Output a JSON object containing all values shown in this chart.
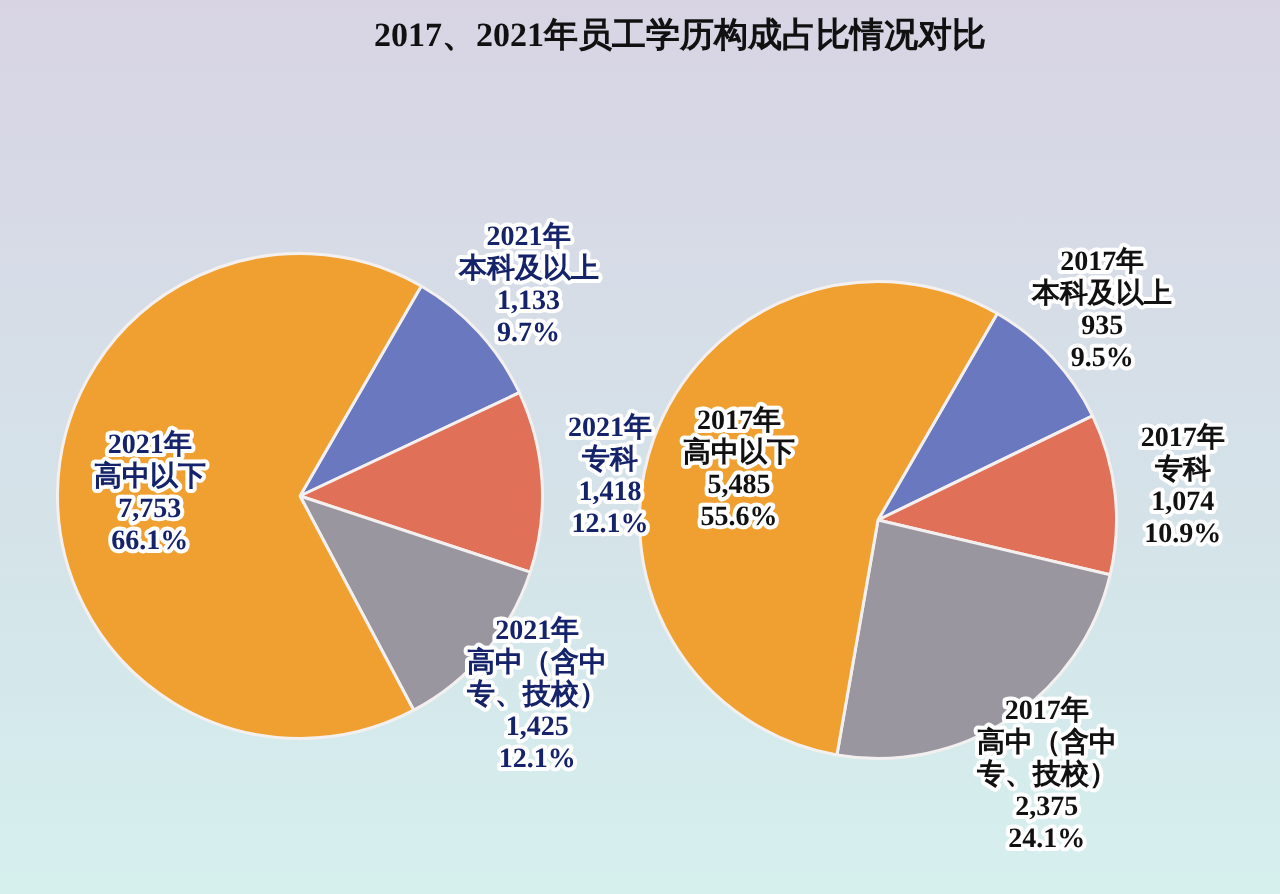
{
  "chart_data": [
    {
      "type": "pie",
      "title": "2017、2021年员工学历构成占比情况对比",
      "categories": [
        "2021年本科及以上",
        "2021年专科",
        "2021年高中（含中专、技校）",
        "2021年高中以下"
      ],
      "values": [
        1133,
        1418,
        1425,
        7753
      ],
      "colors": [
        "#6a78c0",
        "#e07058",
        "#9a96a0",
        "#f0a030"
      ],
      "value_labels": [
        "1,133 9.7%",
        "1,418 12.1%",
        "1,425 12.1%",
        "7,753 66.1%"
      ]
    },
    {
      "type": "pie",
      "categories": [
        "2017年本科及以上",
        "2017年专科",
        "2017年高中（含中专、技校）",
        "2017年高中以下"
      ],
      "values": [
        935,
        1074,
        2375,
        5485
      ],
      "colors": [
        "#6a78c0",
        "#e07058",
        "#9a96a0",
        "#f0a030"
      ],
      "value_labels": [
        "935 9.5%",
        "1,074 10.9%",
        "2,375 24.1%",
        "5,485 55.6%"
      ]
    }
  ]
}
